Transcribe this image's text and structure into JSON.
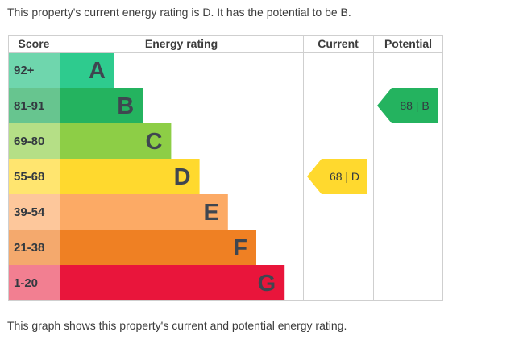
{
  "intro_text": "This property's current energy rating is D. It has the potential to be B.",
  "footer_text": "This graph shows this property's current and potential energy rating.",
  "chart_data": {
    "type": "table",
    "columns": [
      "Score",
      "Energy rating",
      "Current",
      "Potential"
    ],
    "bands": [
      {
        "score": "92+",
        "letter": "A",
        "color": "#2ecb8e",
        "score_bg": "#6fd6ad"
      },
      {
        "score": "81-91",
        "letter": "B",
        "color": "#24b35f",
        "score_bg": "#67c58f"
      },
      {
        "score": "69-80",
        "letter": "C",
        "color": "#8dce46",
        "score_bg": "#b5df86"
      },
      {
        "score": "55-68",
        "letter": "D",
        "color": "#ffd92e",
        "score_bg": "#ffe56f"
      },
      {
        "score": "39-54",
        "letter": "E",
        "color": "#fcaa65",
        "score_bg": "#fdc79b"
      },
      {
        "score": "21-38",
        "letter": "F",
        "color": "#ef8023",
        "score_bg": "#f4a96d"
      },
      {
        "score": "1-20",
        "letter": "G",
        "color": "#e9153b",
        "score_bg": "#f27f91"
      }
    ],
    "current": {
      "value": 68,
      "band": "D",
      "label": "68 | D",
      "color": "#ffd92e"
    },
    "potential": {
      "value": 88,
      "band": "B",
      "label": "88 | B",
      "color": "#24b35f"
    }
  }
}
